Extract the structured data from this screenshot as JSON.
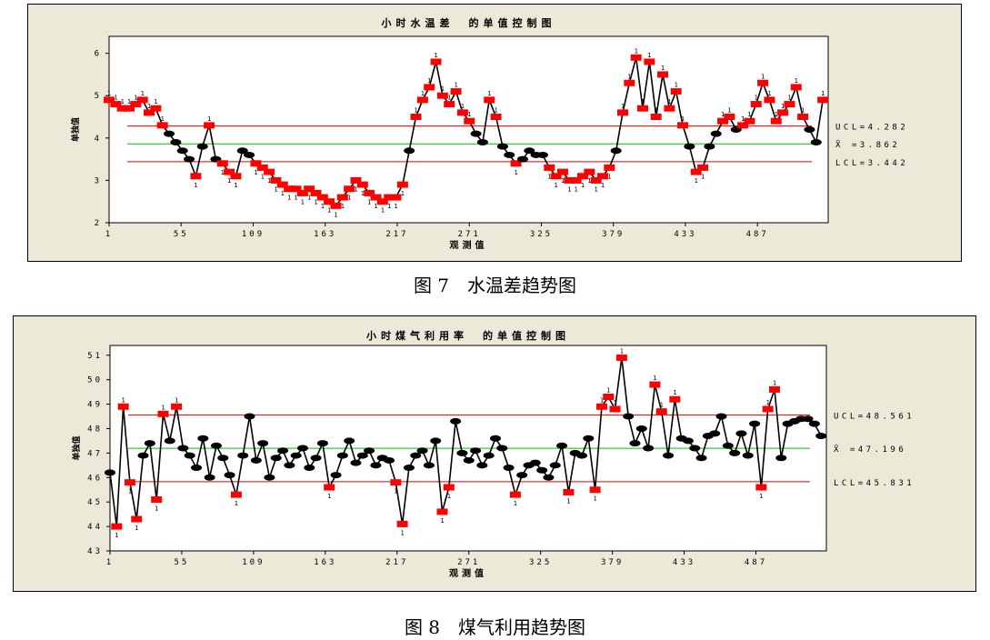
{
  "captions": {
    "fig7": "图 7　水温差趋势图",
    "fig8": "图 8　煤气利用趋势图"
  },
  "colors": {
    "panel_bg": "#ece9d8",
    "plot_bg": "#ffffff",
    "out_of_control": "#ff0000",
    "in_control": "#000000",
    "center_line": "#00c000",
    "limit_line": "#e00000"
  },
  "chart_data": [
    {
      "type": "line",
      "title": "小时水温差　的单值控制图",
      "xlabel": "观测值",
      "ylabel": "单独值",
      "x_ticks": [
        1,
        55,
        109,
        163,
        217,
        271,
        325,
        379,
        433,
        487
      ],
      "y_ticks": [
        2,
        3,
        4,
        5,
        6
      ],
      "xlim": [
        1,
        540
      ],
      "ylim": [
        2,
        6.4
      ],
      "ucl": 4.282,
      "center": 3.862,
      "lcl": 3.442,
      "limit_labels": {
        "ucl": "UCL=4.282",
        "center": "X̄ =3.862",
        "lcl": "LCL=3.442"
      },
      "x": [
        1,
        6,
        11,
        16,
        21,
        26,
        31,
        36,
        41,
        46,
        51,
        56,
        61,
        66,
        71,
        76,
        81,
        86,
        91,
        96,
        101,
        106,
        111,
        116,
        121,
        126,
        131,
        136,
        141,
        146,
        151,
        156,
        161,
        166,
        171,
        176,
        181,
        186,
        191,
        196,
        201,
        206,
        211,
        216,
        221,
        226,
        231,
        236,
        241,
        246,
        251,
        256,
        261,
        266,
        271,
        276,
        281,
        286,
        291,
        296,
        301,
        306,
        311,
        316,
        321,
        326,
        331,
        336,
        341,
        346,
        351,
        356,
        361,
        366,
        371,
        376,
        381,
        386,
        391,
        396,
        401,
        406,
        411,
        416,
        421,
        426,
        431,
        436,
        441,
        446,
        451,
        456,
        461,
        466,
        471,
        476,
        481,
        486,
        491,
        496,
        501,
        506,
        511,
        516,
        521,
        526,
        531,
        536
      ],
      "values": [
        4.9,
        4.8,
        4.7,
        4.7,
        4.8,
        4.9,
        4.6,
        4.7,
        4.3,
        4.1,
        3.9,
        3.7,
        3.5,
        3.1,
        3.8,
        4.3,
        3.5,
        3.4,
        3.2,
        3.1,
        3.7,
        3.6,
        3.4,
        3.3,
        3.2,
        3.0,
        2.9,
        2.8,
        2.8,
        2.7,
        2.8,
        2.7,
        2.6,
        2.5,
        2.4,
        2.6,
        2.8,
        3.0,
        2.9,
        2.7,
        2.6,
        2.5,
        2.6,
        2.6,
        2.9,
        3.7,
        4.5,
        4.9,
        5.2,
        5.8,
        5.0,
        4.8,
        5.1,
        4.6,
        4.4,
        4.1,
        3.9,
        4.9,
        4.5,
        3.8,
        3.6,
        3.4,
        3.5,
        3.7,
        3.6,
        3.6,
        3.3,
        3.1,
        3.2,
        3.0,
        3.0,
        3.1,
        3.2,
        3.0,
        3.1,
        3.3,
        3.7,
        4.6,
        5.3,
        5.9,
        4.7,
        5.8,
        4.5,
        5.5,
        4.7,
        5.1,
        4.3,
        3.8,
        3.2,
        3.3,
        3.8,
        4.1,
        4.4,
        4.5,
        4.2,
        4.3,
        4.4,
        4.8,
        5.3,
        4.9,
        4.4,
        4.6,
        4.8,
        5.2,
        4.5,
        4.2,
        3.9,
        4.9
      ]
    },
    {
      "type": "line",
      "title": "小时煤气利用率　的单值控制图",
      "xlabel": "观测值",
      "ylabel": "单独值",
      "x_ticks": [
        1,
        55,
        109,
        163,
        217,
        271,
        325,
        379,
        433,
        487
      ],
      "y_ticks": [
        43,
        44,
        45,
        46,
        47,
        48,
        49,
        50,
        51
      ],
      "xlim": [
        1,
        540
      ],
      "ylim": [
        43,
        51.4
      ],
      "ucl": 48.561,
      "center": 47.196,
      "lcl": 45.831,
      "limit_labels": {
        "ucl": "UCL=48.561",
        "center": "X̄ =47.196",
        "lcl": "LCL=45.831"
      },
      "x": [
        1,
        6,
        11,
        16,
        21,
        26,
        31,
        36,
        41,
        46,
        51,
        56,
        61,
        66,
        71,
        76,
        81,
        86,
        91,
        96,
        101,
        106,
        111,
        116,
        121,
        126,
        131,
        136,
        141,
        146,
        151,
        156,
        161,
        166,
        171,
        176,
        181,
        186,
        191,
        196,
        201,
        206,
        211,
        216,
        221,
        226,
        231,
        236,
        241,
        246,
        251,
        256,
        261,
        266,
        271,
        276,
        281,
        286,
        291,
        296,
        301,
        306,
        311,
        316,
        321,
        326,
        331,
        336,
        341,
        346,
        351,
        356,
        361,
        366,
        371,
        376,
        381,
        386,
        391,
        396,
        401,
        406,
        411,
        416,
        421,
        426,
        431,
        436,
        441,
        446,
        451,
        456,
        461,
        466,
        471,
        476,
        481,
        486,
        491,
        496,
        501,
        506,
        511,
        516,
        521,
        526,
        531,
        536
      ],
      "values": [
        46.2,
        44.0,
        48.9,
        45.8,
        44.3,
        46.9,
        47.4,
        45.1,
        48.6,
        47.5,
        48.9,
        47.2,
        46.9,
        46.4,
        47.6,
        46.0,
        47.3,
        46.8,
        46.1,
        45.3,
        46.9,
        48.5,
        46.7,
        47.4,
        46.0,
        46.8,
        47.1,
        46.5,
        46.9,
        47.2,
        46.4,
        46.8,
        47.4,
        45.6,
        46.1,
        46.9,
        47.5,
        46.6,
        46.9,
        47.1,
        46.5,
        46.8,
        46.7,
        45.8,
        44.1,
        46.4,
        46.9,
        47.1,
        46.5,
        47.5,
        44.6,
        45.6,
        48.3,
        47.0,
        46.7,
        47.1,
        46.5,
        46.9,
        47.6,
        47.2,
        46.4,
        45.3,
        46.1,
        46.5,
        46.6,
        46.3,
        46.0,
        46.5,
        47.3,
        45.4,
        47.0,
        46.9,
        47.6,
        45.5,
        48.9,
        49.3,
        48.8,
        50.9,
        48.5,
        47.4,
        48.0,
        47.2,
        49.8,
        48.7,
        46.9,
        49.2,
        47.6,
        47.5,
        47.2,
        46.8,
        47.7,
        47.8,
        48.5,
        47.3,
        47.0,
        47.8,
        46.9,
        48.2,
        45.6,
        48.8,
        49.6,
        46.8,
        48.2,
        48.3,
        48.4,
        48.4,
        48.2,
        47.7
      ]
    }
  ]
}
